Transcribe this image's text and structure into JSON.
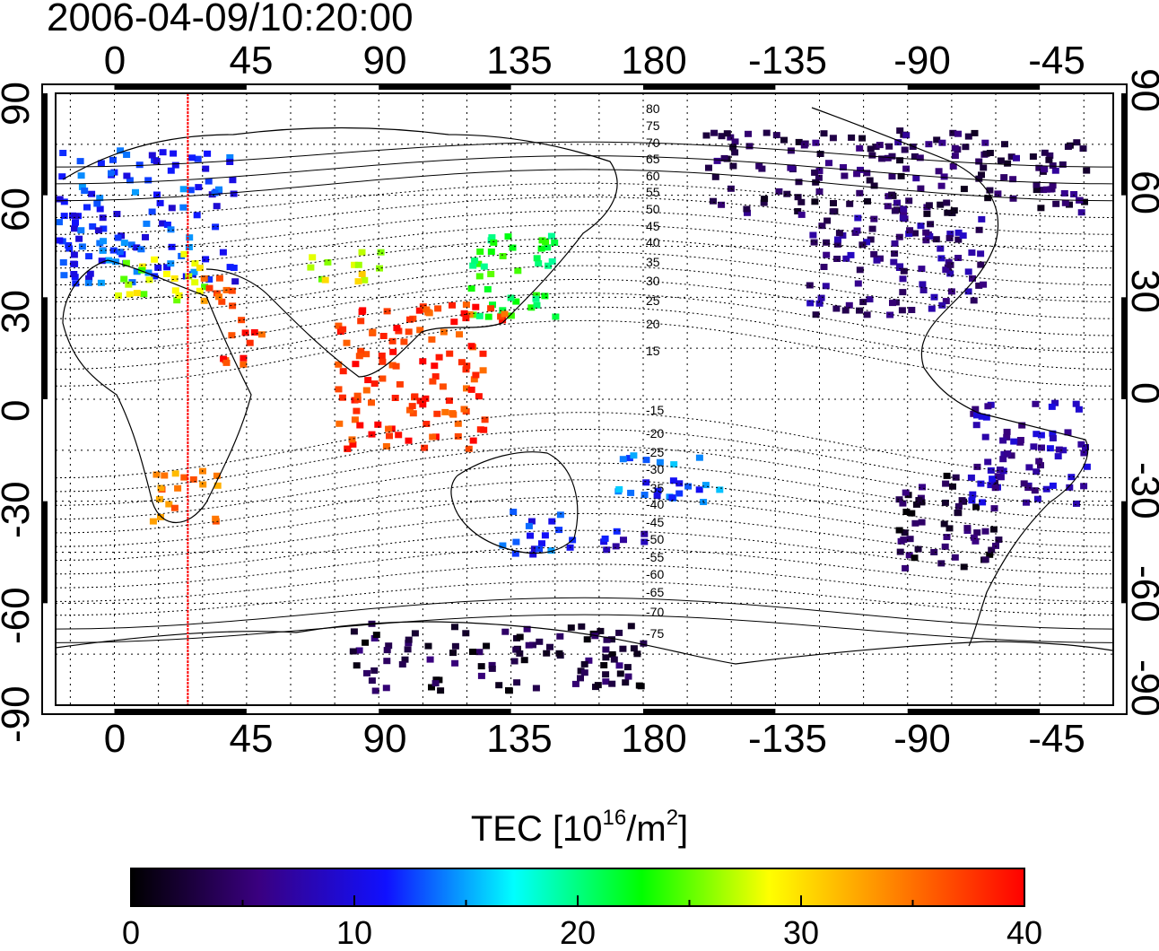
{
  "title": "2006-04-09/10:20:00",
  "x_ticks": [
    "0",
    "45",
    "90",
    "135",
    "180",
    "-135",
    "-90",
    "-45"
  ],
  "y_ticks": [
    "90",
    "60",
    "30",
    "0",
    "-30",
    "-60",
    "-90"
  ],
  "contour_labels": [
    "80",
    "75",
    "70",
    "65",
    "60",
    "55",
    "50",
    "45",
    "40",
    "35",
    "30",
    "25",
    "20",
    "15",
    "-15",
    "-20",
    "-25",
    "-30",
    "-35",
    "-40",
    "-45",
    "-50",
    "-55",
    "-60",
    "-65",
    "-70",
    "-75"
  ],
  "colorbar": {
    "title_prefix": "TEC  [10",
    "title_exp1": "16",
    "title_mid": "/m",
    "title_exp2": "2",
    "title_suffix": "]",
    "ticks": [
      "0",
      "10",
      "20",
      "30",
      "40"
    ],
    "min": 0,
    "max": 40,
    "colors": [
      "#000000",
      "#3a0080",
      "#1010ff",
      "#00ffff",
      "#00ff00",
      "#ffff00",
      "#ff8000",
      "#ff0000"
    ]
  },
  "marker_longitude": 25,
  "colors": {
    "marker_line": "#ff0000",
    "frame": "#000000"
  },
  "chart_data": {
    "type": "heatmap",
    "title": "2006-04-09/10:20:00",
    "xlabel": "",
    "ylabel": "",
    "xlim": [
      -20,
      340
    ],
    "ylim": [
      -90,
      90
    ],
    "x_ticks": [
      0,
      45,
      90,
      135,
      180,
      -135,
      -90,
      -45
    ],
    "y_ticks": [
      90,
      60,
      30,
      0,
      -30,
      -60,
      -90
    ],
    "value_label": "TEC [10^16/m^2]",
    "value_range": [
      0,
      40
    ],
    "grid": true,
    "vertical_marker_lon": 25,
    "regions": [
      {
        "lon": [
          -20,
          40
        ],
        "lat": [
          35,
          75
        ],
        "tec": 12
      },
      {
        "lon": [
          0,
          30
        ],
        "lat": [
          30,
          45
        ],
        "tec": 27
      },
      {
        "lon": [
          25,
          40
        ],
        "lat": [
          28,
          40
        ],
        "tec": 35
      },
      {
        "lon": [
          65,
          90
        ],
        "lat": [
          35,
          45
        ],
        "tec": 28
      },
      {
        "lon": [
          120,
          150
        ],
        "lat": [
          25,
          50
        ],
        "tec": 22
      },
      {
        "lon": [
          115,
          135
        ],
        "lat": [
          22,
          30
        ],
        "tec": 37
      },
      {
        "lon": [
          35,
          50
        ],
        "lat": [
          10,
          25
        ],
        "tec": 38
      },
      {
        "lon": [
          75,
          125
        ],
        "lat": [
          -15,
          30
        ],
        "tec": 38
      },
      {
        "lon": [
          10,
          35
        ],
        "lat": [
          -35,
          -20
        ],
        "tec": 34
      },
      {
        "lon": [
          130,
          155
        ],
        "lat": [
          -45,
          -30
        ],
        "tec": 12
      },
      {
        "lon": [
          165,
          180
        ],
        "lat": [
          -45,
          -35
        ],
        "tec": 10
      },
      {
        "lon": [
          170,
          205
        ],
        "lat": [
          -30,
          -15
        ],
        "tec": 13
      },
      {
        "lon": [
          200,
          330
        ],
        "lat": [
          55,
          80
        ],
        "tec": 4
      },
      {
        "lon": [
          235,
          295
        ],
        "lat": [
          25,
          55
        ],
        "tec": 6
      },
      {
        "lon": [
          265,
          300
        ],
        "lat": [
          -50,
          -20
        ],
        "tec": 3
      },
      {
        "lon": [
          290,
          330
        ],
        "lat": [
          -30,
          0
        ],
        "tec": 8
      },
      {
        "lon": [
          80,
          180
        ],
        "lat": [
          -85,
          -65
        ],
        "tec": 3
      }
    ]
  }
}
